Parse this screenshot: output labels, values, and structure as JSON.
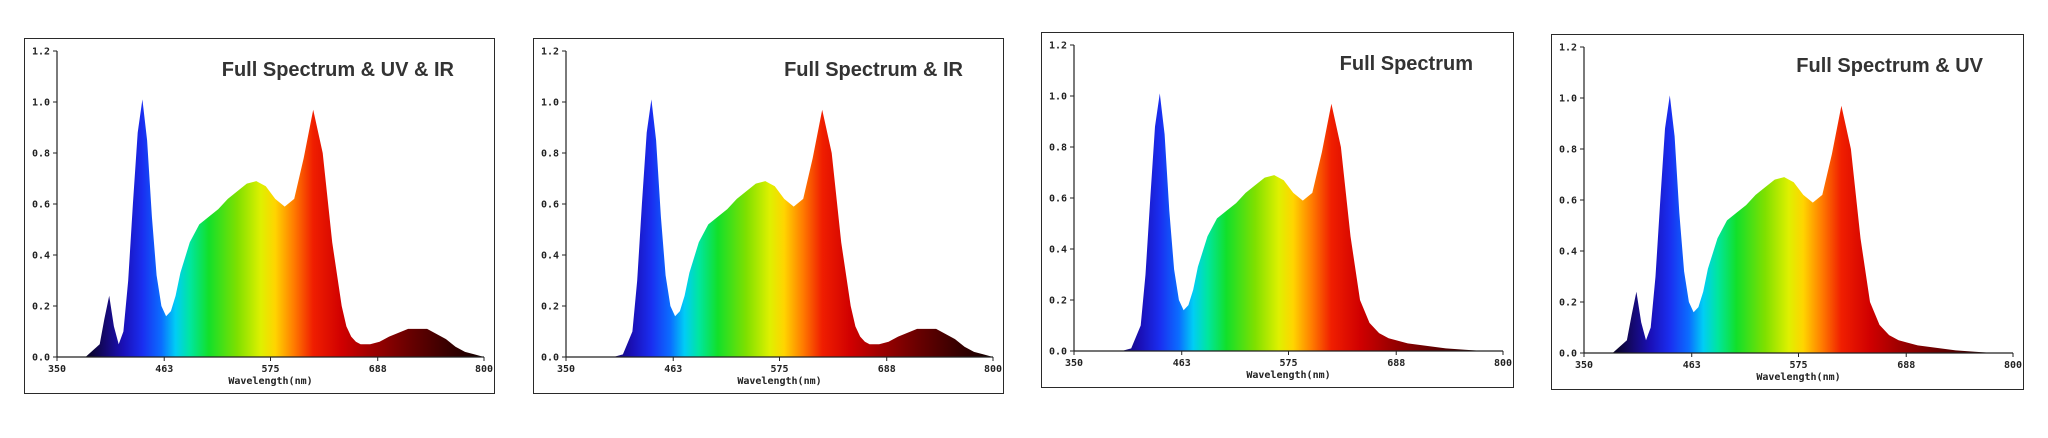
{
  "chart_data": [
    {
      "type": "area",
      "title": "Full Spectrum & UV & IR",
      "xlabel": "Wavelength(nm)",
      "ylabel": "",
      "xlim": [
        350,
        800
      ],
      "ylim": [
        0,
        1.2
      ],
      "x_ticks": [
        "350",
        "463",
        "575",
        "688",
        "800"
      ],
      "y_ticks": [
        "0.0",
        "0.2",
        "0.4",
        "0.6",
        "0.8",
        "1.0",
        "1.2"
      ],
      "grid": false,
      "fill": "wavelength-colored spectrum",
      "series": [
        {
          "x": [
            350,
            380,
            395,
            400,
            405,
            410,
            415,
            420,
            425,
            430,
            435,
            440,
            445,
            450,
            455,
            460,
            465,
            470,
            475,
            480,
            490,
            500,
            510,
            520,
            530,
            540,
            550,
            560,
            570,
            580,
            590,
            600,
            610,
            620,
            630,
            640,
            650,
            655,
            660,
            665,
            670,
            680,
            690,
            700,
            720,
            740,
            760,
            770,
            780,
            790,
            800
          ],
          "y": [
            0.0,
            0.0,
            0.05,
            0.15,
            0.24,
            0.12,
            0.05,
            0.1,
            0.3,
            0.6,
            0.88,
            1.01,
            0.85,
            0.55,
            0.32,
            0.2,
            0.16,
            0.18,
            0.24,
            0.33,
            0.45,
            0.52,
            0.55,
            0.58,
            0.62,
            0.65,
            0.68,
            0.69,
            0.67,
            0.62,
            0.59,
            0.62,
            0.78,
            0.97,
            0.8,
            0.45,
            0.2,
            0.12,
            0.08,
            0.06,
            0.05,
            0.05,
            0.06,
            0.08,
            0.11,
            0.11,
            0.07,
            0.04,
            0.02,
            0.01,
            0.0
          ]
        }
      ]
    },
    {
      "type": "area",
      "title": "Full Spectrum & IR",
      "xlabel": "Wavelength(nm)",
      "ylabel": "",
      "xlim": [
        350,
        800
      ],
      "ylim": [
        0,
        1.2
      ],
      "x_ticks": [
        "350",
        "463",
        "575",
        "688",
        "800"
      ],
      "y_ticks": [
        "0.0",
        "0.2",
        "0.4",
        "0.6",
        "0.8",
        "1.0",
        "1.2"
      ],
      "grid": false,
      "fill": "wavelength-colored spectrum",
      "series": [
        {
          "x": [
            350,
            400,
            410,
            420,
            425,
            430,
            435,
            440,
            445,
            450,
            455,
            460,
            465,
            470,
            475,
            480,
            490,
            500,
            510,
            520,
            530,
            540,
            550,
            560,
            570,
            580,
            590,
            600,
            610,
            620,
            630,
            640,
            650,
            655,
            660,
            665,
            670,
            680,
            690,
            700,
            720,
            740,
            760,
            770,
            780,
            790,
            800
          ],
          "y": [
            0.0,
            0.0,
            0.01,
            0.1,
            0.3,
            0.6,
            0.88,
            1.01,
            0.85,
            0.55,
            0.32,
            0.2,
            0.16,
            0.18,
            0.24,
            0.33,
            0.45,
            0.52,
            0.55,
            0.58,
            0.62,
            0.65,
            0.68,
            0.69,
            0.67,
            0.62,
            0.59,
            0.62,
            0.78,
            0.97,
            0.8,
            0.45,
            0.2,
            0.12,
            0.08,
            0.06,
            0.05,
            0.05,
            0.06,
            0.08,
            0.11,
            0.11,
            0.07,
            0.04,
            0.02,
            0.01,
            0.0
          ]
        }
      ]
    },
    {
      "type": "area",
      "title": "Full Spectrum",
      "xlabel": "Wavelength(nm)",
      "ylabel": "",
      "xlim": [
        350,
        800
      ],
      "ylim": [
        0,
        1.2
      ],
      "x_ticks": [
        "350",
        "463",
        "575",
        "688",
        "800"
      ],
      "y_ticks": [
        "0.0",
        "0.2",
        "0.4",
        "0.6",
        "0.8",
        "1.0",
        "1.2"
      ],
      "grid": false,
      "fill": "wavelength-colored spectrum",
      "series": [
        {
          "x": [
            350,
            400,
            410,
            420,
            425,
            430,
            435,
            440,
            445,
            450,
            455,
            460,
            465,
            470,
            475,
            480,
            490,
            500,
            510,
            520,
            530,
            540,
            550,
            560,
            570,
            580,
            590,
            600,
            610,
            620,
            630,
            640,
            650,
            660,
            670,
            680,
            700,
            720,
            740,
            760,
            780,
            800
          ],
          "y": [
            0.0,
            0.0,
            0.01,
            0.1,
            0.3,
            0.6,
            0.88,
            1.01,
            0.85,
            0.55,
            0.32,
            0.2,
            0.16,
            0.18,
            0.24,
            0.33,
            0.45,
            0.52,
            0.55,
            0.58,
            0.62,
            0.65,
            0.68,
            0.69,
            0.67,
            0.62,
            0.59,
            0.62,
            0.78,
            0.97,
            0.8,
            0.45,
            0.2,
            0.11,
            0.07,
            0.05,
            0.03,
            0.02,
            0.01,
            0.005,
            0.0,
            0.0
          ]
        }
      ]
    },
    {
      "type": "area",
      "title": "Full Spectrum & UV",
      "xlabel": "Wavelength(nm)",
      "ylabel": "",
      "xlim": [
        350,
        800
      ],
      "ylim": [
        0,
        1.2
      ],
      "x_ticks": [
        "350",
        "463",
        "575",
        "688",
        "800"
      ],
      "y_ticks": [
        "0.0",
        "0.2",
        "0.4",
        "0.6",
        "0.8",
        "1.0",
        "1.2"
      ],
      "grid": false,
      "fill": "wavelength-colored spectrum",
      "series": [
        {
          "x": [
            350,
            380,
            395,
            400,
            405,
            410,
            415,
            420,
            425,
            430,
            435,
            440,
            445,
            450,
            455,
            460,
            465,
            470,
            475,
            480,
            490,
            500,
            510,
            520,
            530,
            540,
            550,
            560,
            570,
            580,
            590,
            600,
            610,
            620,
            630,
            640,
            650,
            660,
            670,
            680,
            700,
            720,
            740,
            760,
            780,
            800
          ],
          "y": [
            0.0,
            0.0,
            0.05,
            0.15,
            0.24,
            0.12,
            0.05,
            0.1,
            0.3,
            0.6,
            0.88,
            1.01,
            0.85,
            0.55,
            0.32,
            0.2,
            0.16,
            0.18,
            0.24,
            0.33,
            0.45,
            0.52,
            0.55,
            0.58,
            0.62,
            0.65,
            0.68,
            0.69,
            0.67,
            0.62,
            0.59,
            0.62,
            0.78,
            0.97,
            0.8,
            0.45,
            0.2,
            0.11,
            0.07,
            0.05,
            0.03,
            0.02,
            0.01,
            0.005,
            0.0,
            0.0
          ]
        }
      ]
    }
  ]
}
